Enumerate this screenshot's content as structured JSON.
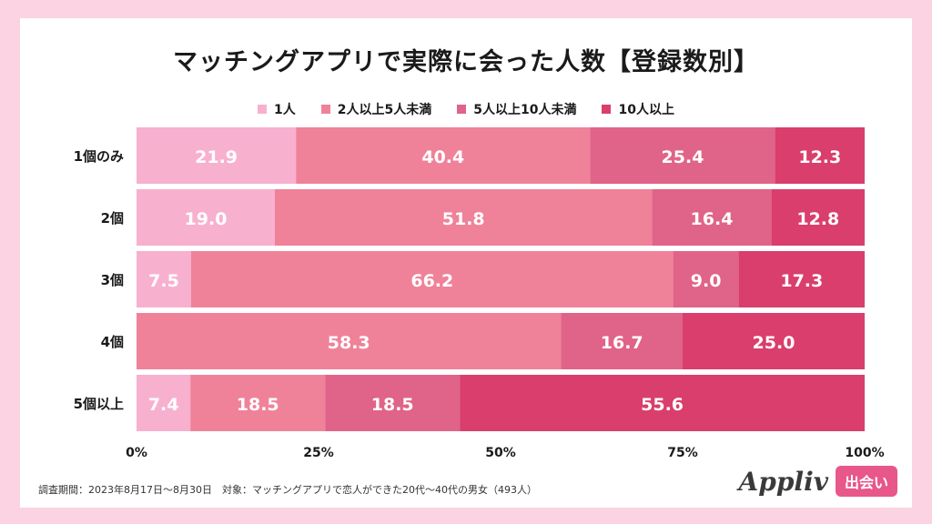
{
  "title": "マッチングアプリで実際に会った人数【登録数別】",
  "footer": "調査期間：2023年8月17日〜8月30日　対象：マッチングアプリで恋人ができた20代〜40代の男女（493人）",
  "brand": {
    "logo": "Appliv",
    "badge": "出会い"
  },
  "chart_data": {
    "type": "bar",
    "orientation": "horizontal",
    "stacked": true,
    "normalized_percent": true,
    "categories": [
      "1個のみ",
      "2個",
      "3個",
      "4個",
      "5個以上"
    ],
    "series": [
      {
        "name": "1人",
        "color": "#f8b0cf",
        "values": [
          21.9,
          19.0,
          7.5,
          0,
          7.4
        ]
      },
      {
        "name": "2人以上5人未満",
        "color": "#ef8299",
        "values": [
          40.4,
          51.8,
          66.2,
          58.3,
          18.5
        ]
      },
      {
        "name": "5人以上10人未満",
        "color": "#e06389",
        "values": [
          25.4,
          16.4,
          9.0,
          16.7,
          18.5
        ]
      },
      {
        "name": "10人以上",
        "color": "#d93e6c",
        "values": [
          12.3,
          12.8,
          17.3,
          25.0,
          55.6
        ]
      }
    ],
    "xlim": [
      0,
      100
    ],
    "xticks": [
      "0%",
      "25%",
      "50%",
      "75%",
      "100%"
    ],
    "legend_position": "top",
    "grid": false
  }
}
